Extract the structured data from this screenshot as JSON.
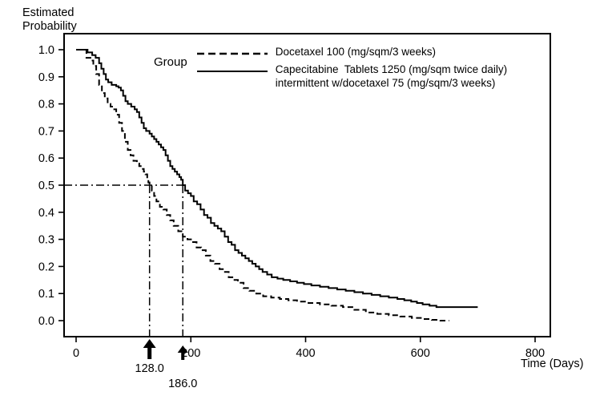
{
  "chart": {
    "y_title_line1": "Estimated",
    "y_title_line2": "Probability",
    "xlabel": "Time (Days)",
    "legend": {
      "title": "Group",
      "entries": [
        {
          "style": "dashed",
          "label": "Docetaxel 100 (mg/sqm/3 weeks)"
        },
        {
          "style": "solid",
          "label_line1": "Capecitabine  Tablets 1250 (mg/sqm twice daily)",
          "label_line2": "intermittent w/docetaxel 75 (mg/sqm/3 weeks)"
        }
      ]
    }
  },
  "chart_data": {
    "type": "line",
    "line_type": "step-after",
    "title": "",
    "xlabel": "Time (Days)",
    "ylabel": "Estimated Probability",
    "xlim": [
      0,
      800
    ],
    "ylim": [
      0,
      1
    ],
    "xticks": [
      0,
      200,
      400,
      600,
      800
    ],
    "yticks": [
      1.0,
      0.9,
      0.8,
      0.7,
      0.6,
      0.5,
      0.4,
      0.3,
      0.2,
      0.1,
      0.0
    ],
    "grid": false,
    "legend_position": "top-inside",
    "colors": {
      "line": "#000000",
      "background": "#ffffff"
    },
    "series": [
      {
        "name": "Docetaxel 100 (mg/sqm/3 weeks)",
        "line_style": "dashed",
        "median_days": 128.0,
        "points": [
          [
            0,
            1.0
          ],
          [
            12,
            1.0
          ],
          [
            18,
            0.97
          ],
          [
            25,
            0.96
          ],
          [
            30,
            0.94
          ],
          [
            35,
            0.91
          ],
          [
            40,
            0.87
          ],
          [
            45,
            0.84
          ],
          [
            50,
            0.82
          ],
          [
            55,
            0.8
          ],
          [
            60,
            0.79
          ],
          [
            65,
            0.78
          ],
          [
            70,
            0.76
          ],
          [
            75,
            0.73
          ],
          [
            80,
            0.7
          ],
          [
            85,
            0.66
          ],
          [
            90,
            0.63
          ],
          [
            95,
            0.61
          ],
          [
            100,
            0.59
          ],
          [
            106,
            0.58
          ],
          [
            110,
            0.57
          ],
          [
            114,
            0.56
          ],
          [
            118,
            0.55
          ],
          [
            121,
            0.54
          ],
          [
            124,
            0.52
          ],
          [
            126,
            0.51
          ],
          [
            128,
            0.5
          ],
          [
            132,
            0.48
          ],
          [
            136,
            0.46
          ],
          [
            140,
            0.44
          ],
          [
            146,
            0.42
          ],
          [
            152,
            0.41
          ],
          [
            158,
            0.39
          ],
          [
            164,
            0.37
          ],
          [
            170,
            0.35
          ],
          [
            178,
            0.33
          ],
          [
            186,
            0.31
          ],
          [
            194,
            0.3
          ],
          [
            202,
            0.29
          ],
          [
            210,
            0.27
          ],
          [
            218,
            0.26
          ],
          [
            226,
            0.24
          ],
          [
            234,
            0.22
          ],
          [
            242,
            0.21
          ],
          [
            250,
            0.19
          ],
          [
            258,
            0.18
          ],
          [
            266,
            0.16
          ],
          [
            274,
            0.15
          ],
          [
            282,
            0.14
          ],
          [
            292,
            0.12
          ],
          [
            302,
            0.11
          ],
          [
            314,
            0.1
          ],
          [
            326,
            0.09
          ],
          [
            340,
            0.085
          ],
          [
            355,
            0.08
          ],
          [
            370,
            0.075
          ],
          [
            385,
            0.07
          ],
          [
            405,
            0.065
          ],
          [
            425,
            0.06
          ],
          [
            445,
            0.055
          ],
          [
            465,
            0.05
          ],
          [
            485,
            0.04
          ],
          [
            505,
            0.03
          ],
          [
            525,
            0.025
          ],
          [
            545,
            0.02
          ],
          [
            565,
            0.015
          ],
          [
            585,
            0.01
          ],
          [
            605,
            0.006
          ],
          [
            620,
            0.003
          ],
          [
            635,
            0.0
          ],
          [
            650,
            0.0
          ]
        ]
      },
      {
        "name": "Capecitabine Tablets 1250 (mg/sqm twice daily) intermittent w/docetaxel 75 (mg/sqm/3 weeks)",
        "line_style": "solid",
        "median_days": 186.0,
        "points": [
          [
            0,
            1.0
          ],
          [
            15,
            1.0
          ],
          [
            20,
            0.99
          ],
          [
            28,
            0.98
          ],
          [
            34,
            0.97
          ],
          [
            40,
            0.95
          ],
          [
            44,
            0.93
          ],
          [
            48,
            0.91
          ],
          [
            52,
            0.89
          ],
          [
            56,
            0.88
          ],
          [
            62,
            0.87
          ],
          [
            70,
            0.865
          ],
          [
            74,
            0.86
          ],
          [
            78,
            0.85
          ],
          [
            82,
            0.83
          ],
          [
            86,
            0.81
          ],
          [
            90,
            0.8
          ],
          [
            96,
            0.79
          ],
          [
            102,
            0.78
          ],
          [
            106,
            0.77
          ],
          [
            110,
            0.75
          ],
          [
            114,
            0.73
          ],
          [
            118,
            0.71
          ],
          [
            122,
            0.7
          ],
          [
            128,
            0.69
          ],
          [
            132,
            0.68
          ],
          [
            136,
            0.67
          ],
          [
            140,
            0.66
          ],
          [
            144,
            0.65
          ],
          [
            148,
            0.64
          ],
          [
            152,
            0.63
          ],
          [
            156,
            0.61
          ],
          [
            160,
            0.59
          ],
          [
            164,
            0.57
          ],
          [
            168,
            0.56
          ],
          [
            172,
            0.55
          ],
          [
            176,
            0.54
          ],
          [
            180,
            0.53
          ],
          [
            183,
            0.52
          ],
          [
            186,
            0.5
          ],
          [
            190,
            0.48
          ],
          [
            195,
            0.47
          ],
          [
            200,
            0.46
          ],
          [
            205,
            0.44
          ],
          [
            211,
            0.43
          ],
          [
            217,
            0.41
          ],
          [
            223,
            0.39
          ],
          [
            229,
            0.38
          ],
          [
            235,
            0.36
          ],
          [
            241,
            0.35
          ],
          [
            247,
            0.34
          ],
          [
            253,
            0.33
          ],
          [
            259,
            0.31
          ],
          [
            265,
            0.29
          ],
          [
            271,
            0.28
          ],
          [
            277,
            0.26
          ],
          [
            283,
            0.25
          ],
          [
            289,
            0.24
          ],
          [
            295,
            0.23
          ],
          [
            301,
            0.22
          ],
          [
            307,
            0.21
          ],
          [
            313,
            0.2
          ],
          [
            319,
            0.19
          ],
          [
            325,
            0.18
          ],
          [
            333,
            0.17
          ],
          [
            341,
            0.16
          ],
          [
            351,
            0.155
          ],
          [
            361,
            0.15
          ],
          [
            373,
            0.145
          ],
          [
            385,
            0.14
          ],
          [
            397,
            0.135
          ],
          [
            410,
            0.13
          ],
          [
            425,
            0.125
          ],
          [
            440,
            0.12
          ],
          [
            455,
            0.115
          ],
          [
            470,
            0.11
          ],
          [
            485,
            0.105
          ],
          [
            500,
            0.1
          ],
          [
            515,
            0.095
          ],
          [
            530,
            0.09
          ],
          [
            545,
            0.085
          ],
          [
            560,
            0.08
          ],
          [
            572,
            0.075
          ],
          [
            584,
            0.07
          ],
          [
            594,
            0.065
          ],
          [
            604,
            0.06
          ],
          [
            616,
            0.055
          ],
          [
            628,
            0.05
          ],
          [
            700,
            0.05
          ]
        ]
      }
    ],
    "annotations": {
      "reference_probability": 0.5,
      "medians": [
        {
          "x": 128.0,
          "label": "128.0"
        },
        {
          "x": 186.0,
          "label": "186.0"
        }
      ]
    }
  }
}
